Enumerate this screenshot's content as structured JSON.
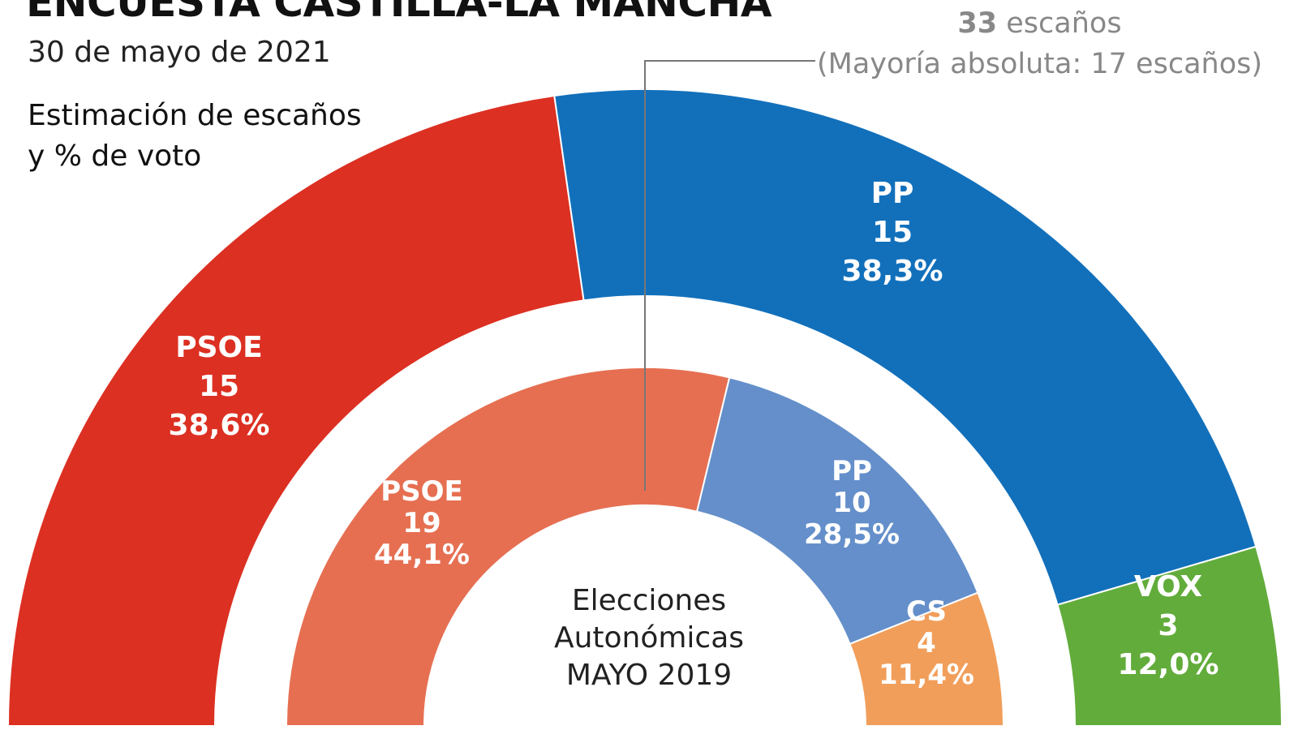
{
  "header": {
    "title": "ENCUESTA CASTILLA-LA MANCHA",
    "date": "30 de mayo de 2021",
    "subtitle_line1": "Estimación de escaños",
    "subtitle_line2": "y % de voto",
    "total_seats_number": "33",
    "total_seats_word": "escaños",
    "majority": "(Mayoría absoluta: 17 escaños)"
  },
  "chart_data": [
    {
      "type": "pie",
      "name": "Estimación",
      "total_seats": 33,
      "majority": 17,
      "parties": [
        {
          "party": "PSOE",
          "seats": 15,
          "seats_label": "15",
          "vote": "38,6%",
          "color": "#dc3022"
        },
        {
          "party": "PP",
          "seats": 15,
          "seats_label": "15",
          "vote": "38,3%",
          "color": "#1270bb"
        },
        {
          "party": "VOX",
          "seats": 3,
          "seats_label": "3",
          "vote": "12,0%",
          "color": "#62ac3b"
        }
      ]
    },
    {
      "type": "pie",
      "name": "Elecciones Autonómicas MAYO 2019",
      "total_seats": 33,
      "parties": [
        {
          "party": "PSOE",
          "seats": 19,
          "seats_label": "19",
          "vote": "44,1%",
          "color": "#e66f52"
        },
        {
          "party": "PP",
          "seats": 10,
          "seats_label": "10",
          "vote": "28,5%",
          "color": "#648fca"
        },
        {
          "party": "CS",
          "seats": 4,
          "seats_label": "4",
          "vote": "11,4%",
          "color": "#f19e5a"
        }
      ]
    }
  ],
  "center_label": [
    "Elecciones",
    "Autonómicas",
    "MAYO 2019"
  ]
}
